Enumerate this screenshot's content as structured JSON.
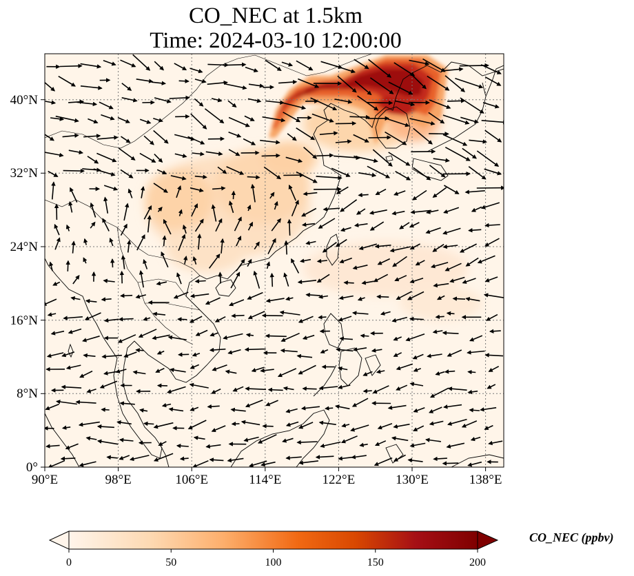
{
  "title_line1": "CO_NEC at 1.5km",
  "title_line2": "Time: 2024-03-10 12:00:00",
  "map": {
    "lon_range": [
      90,
      140
    ],
    "lat_range": [
      0,
      45
    ],
    "lon_ticks": [
      "90°E",
      "98°E",
      "106°E",
      "114°E",
      "122°E",
      "130°E",
      "138°E"
    ],
    "lat_ticks": [
      "0°",
      "8°N",
      "16°N",
      "24°N",
      "32°N",
      "40°N"
    ],
    "background_color": "#fff5e9",
    "gridlines": "dotted"
  },
  "colorbar": {
    "label": "CO_NEC (ppbv)",
    "ticks": [
      "0",
      "50",
      "100",
      "150",
      "200"
    ],
    "range": [
      0,
      200
    ],
    "extend": "both",
    "colormap": [
      "#fff5eb",
      "#fdd9b2",
      "#fdae6b",
      "#f16913",
      "#d94801",
      "#a50f15",
      "#7f0000"
    ]
  },
  "plumes": [
    {
      "region": "Northeast China / Korea / Sea of Japan",
      "level": "high",
      "approx_ppbv": 170
    },
    {
      "region": "South China inland",
      "level": "moderate",
      "approx_ppbv": 40
    },
    {
      "region": "Western Pacific east of Taiwan",
      "level": "low",
      "approx_ppbv": 20
    }
  ],
  "wind_field": {
    "north_of_30N": "westerly to northwesterly, strong over Northeast Asia",
    "south_china": "southerly to southeasterly",
    "tropics": "easterly to northeasterly trades"
  }
}
